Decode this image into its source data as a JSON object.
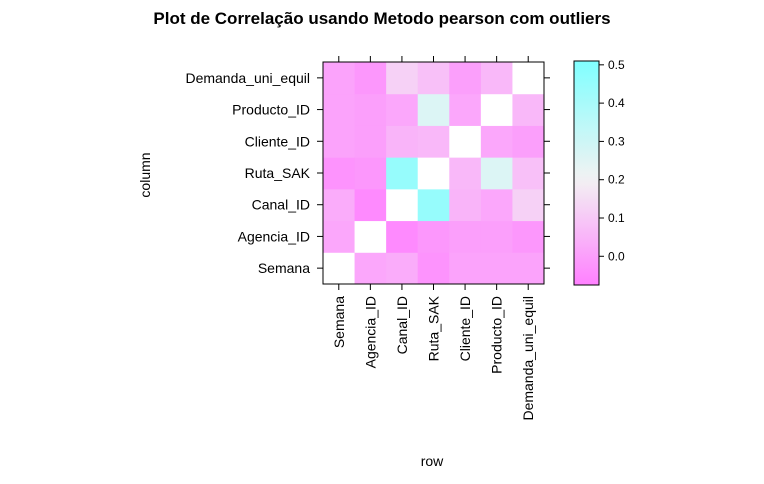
{
  "chart_data": {
    "type": "heatmap",
    "title": "Plot de Correlação usando Metodo pearson com outliers",
    "xlabel": "row",
    "ylabel": "column",
    "variables": [
      "Semana",
      "Agencia_ID",
      "Canal_ID",
      "Ruta_SAK",
      "Cliente_ID",
      "Producto_ID",
      "Demanda_uni_equil"
    ],
    "matrix": [
      [
        1.0,
        0.02,
        0.03,
        -0.03,
        0.01,
        0.01,
        0.01
      ],
      [
        0.02,
        1.0,
        -0.05,
        -0.02,
        0.0,
        0.0,
        -0.02
      ],
      [
        0.03,
        -0.05,
        1.0,
        0.45,
        0.05,
        0.02,
        0.12
      ],
      [
        -0.03,
        -0.02,
        0.45,
        1.0,
        0.06,
        0.26,
        0.08
      ],
      [
        0.01,
        0.0,
        0.05,
        0.06,
        1.0,
        0.02,
        0.0
      ],
      [
        0.01,
        0.0,
        0.02,
        0.26,
        0.02,
        1.0,
        0.06
      ],
      [
        0.01,
        -0.02,
        0.12,
        0.08,
        0.0,
        0.06,
        1.0
      ]
    ],
    "colorbar": {
      "ticks": [
        "0.0",
        "0.1",
        "0.2",
        "0.3",
        "0.4",
        "0.5"
      ],
      "range": [
        -0.075,
        0.51
      ],
      "low_color": "#ff80ff",
      "mid_color": "#f2f2f2",
      "high_color": "#80ffff",
      "mid_value": 0.2
    }
  }
}
